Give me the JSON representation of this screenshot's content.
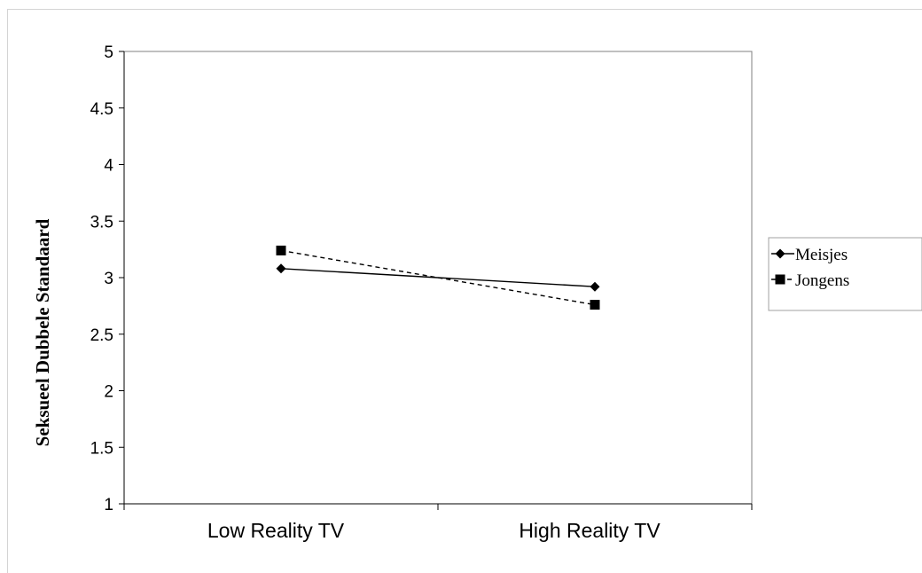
{
  "chart_data": {
    "type": "line",
    "title": "",
    "xlabel": "",
    "ylabel": "Seksueel Dubbele Standaard",
    "categories": [
      "Low Reality TV",
      "High Reality TV"
    ],
    "ylim": [
      1,
      5
    ],
    "yticks": [
      "1",
      "1.5",
      "2",
      "2.5",
      "3",
      "3.5",
      "4",
      "4.5",
      "5"
    ],
    "grid": false,
    "legend_position": "right",
    "series": [
      {
        "name": "Meisjes",
        "values": [
          3.08,
          2.92
        ],
        "marker": "diamond",
        "line_style": "solid",
        "color": "#000000"
      },
      {
        "name": "Jongens",
        "values": [
          3.24,
          2.76
        ],
        "marker": "square",
        "line_style": "dashed",
        "color": "#000000"
      }
    ]
  }
}
